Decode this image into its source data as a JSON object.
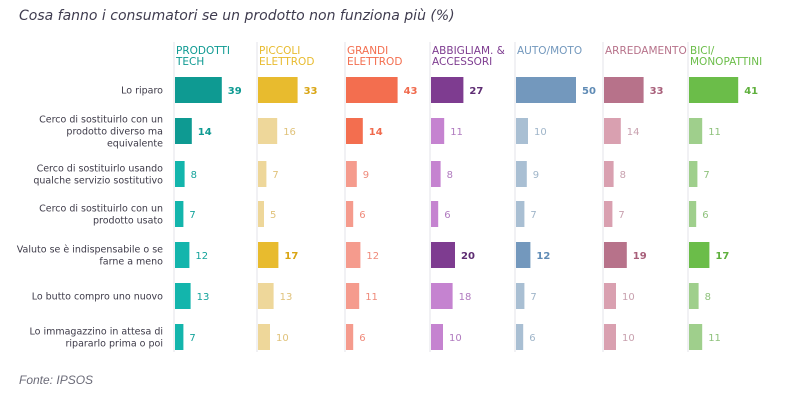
{
  "page": {
    "source": "Fonte: IPSOS"
  },
  "chart_data": {
    "type": "bar",
    "title": "Cosa fanno i consumatori se un prodotto non funziona più (%)",
    "orientation": "horizontal",
    "categories": [
      [
        "Lo riparo"
      ],
      [
        "Cerco di sostituirlo con un",
        "prodotto diverso ma",
        "equivalente"
      ],
      [
        "Cerco di sostituirlo usando",
        "qualche servizio sostitutivo"
      ],
      [
        "Cerco di sostituirlo con un",
        "prodotto usato"
      ],
      [
        "Valuto se è indispensabile o se",
        "farne a meno"
      ],
      [
        "Lo butto compro uno nuovo"
      ],
      [
        "Lo immagazzino in attesa di",
        "ripararlo prima o poi"
      ]
    ],
    "max_value": 50,
    "series": [
      {
        "name": [
          "PRODOTTI",
          "TECH"
        ],
        "color": "#13b5ac",
        "color_strong": "#0e9a92",
        "values": [
          39,
          14,
          8,
          7,
          12,
          13,
          7
        ]
      },
      {
        "name": [
          "PICCOLI",
          "ELETTROD"
        ],
        "color": "#eed79a",
        "color_strong": "#e8bb2e",
        "values": [
          33,
          16,
          7,
          5,
          17,
          13,
          10
        ]
      },
      {
        "name": [
          "GRANDI",
          "ELETTROD"
        ],
        "color": "#f59b8d",
        "color_strong": "#f36e4f",
        "values": [
          43,
          14,
          9,
          6,
          12,
          11,
          6
        ]
      },
      {
        "name": [
          "ABBIGLIAM. &",
          "ACCESSORI"
        ],
        "color": "#c583d0",
        "color_strong": "#7e3c90",
        "values": [
          27,
          11,
          8,
          6,
          20,
          18,
          10
        ]
      },
      {
        "name": [
          "AUTO/MOTO"
        ],
        "color": "#a9bfd3",
        "color_strong": "#7398bd",
        "values": [
          50,
          10,
          9,
          7,
          12,
          7,
          6
        ]
      },
      {
        "name": [
          "ARREDAMENTO"
        ],
        "color": "#d9a0b0",
        "color_strong": "#b7728a",
        "values": [
          33,
          14,
          8,
          7,
          19,
          10,
          10
        ]
      },
      {
        "name": [
          "BICI/",
          "MONOPATTINI"
        ],
        "color": "#9fcf8c",
        "color_strong": "#6bbd49",
        "values": [
          41,
          11,
          7,
          6,
          17,
          8,
          11
        ]
      }
    ],
    "highlighted": [
      [
        0,
        0
      ],
      [
        0,
        1
      ],
      [
        1,
        0
      ],
      [
        1,
        4
      ],
      [
        2,
        0
      ],
      [
        2,
        1
      ],
      [
        3,
        0
      ],
      [
        3,
        4
      ],
      [
        4,
        0
      ],
      [
        4,
        4
      ],
      [
        5,
        0
      ],
      [
        5,
        4
      ],
      [
        6,
        0
      ],
      [
        6,
        4
      ]
    ],
    "label_colors": {
      "strong": [
        "#0e9a92",
        "#d9a514",
        "#f06a4d",
        "#5e2d73",
        "#5f8bb5",
        "#a85f7a",
        "#5fb03d"
      ],
      "light": [
        "#13a39b",
        "#e0c27a",
        "#ef8a7a",
        "#b07abf",
        "#9fb5c9",
        "#c8a0ae",
        "#8fc27c"
      ]
    }
  }
}
